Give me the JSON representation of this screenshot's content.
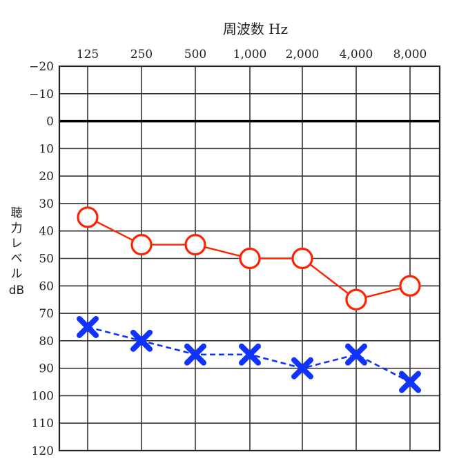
{
  "chart_data": {
    "type": "line",
    "title": "",
    "xlabel": "周波数 Hz",
    "ylabel": "聴力レベル dB",
    "categories": [
      "125",
      "250",
      "500",
      "1,000",
      "2,000",
      "4,000",
      "8,000"
    ],
    "y_ticks": [
      "−20",
      "−10",
      "0",
      "10",
      "20",
      "30",
      "40",
      "50",
      "60",
      "70",
      "80",
      "90",
      "100",
      "110",
      "120"
    ],
    "ylim": [
      -20,
      120
    ],
    "y_inverted": true,
    "grid": true,
    "series": [
      {
        "marker": "circle",
        "line": "solid",
        "color": "#ff2200",
        "values": [
          35,
          45,
          45,
          50,
          50,
          65,
          60
        ]
      },
      {
        "marker": "cross",
        "line": "dashed",
        "color": "#1133ff",
        "values": [
          75,
          80,
          85,
          85,
          90,
          85,
          95
        ]
      }
    ]
  },
  "ylabel_chars": [
    "聴",
    "力",
    "レ",
    "ベ",
    "ル",
    "dB"
  ]
}
